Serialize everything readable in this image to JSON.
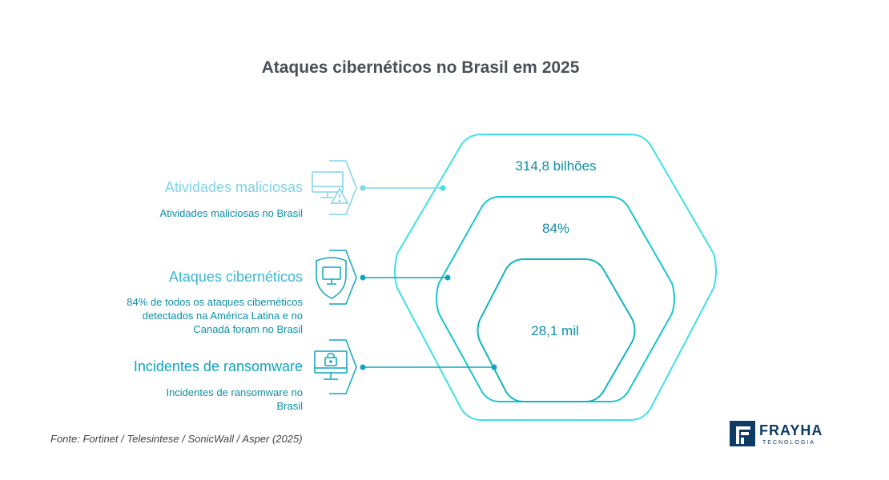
{
  "title": "Ataques cibernéticos no Brasil em 2025",
  "items": [
    {
      "title": "Atividades maliciosas",
      "description": "Atividades maliciosas no Brasil",
      "icon": "monitor-warning-icon",
      "color": "#7fd3ea"
    },
    {
      "title": "Ataques cibernéticos",
      "description": "84% de todos os ataques cibernéticos detectados na América Latina e no Canadá foram no Brasil",
      "icon": "shield-monitor-icon",
      "color": "#3bb8d6"
    },
    {
      "title": "Incidentes de ransomware",
      "description": "Incidentes de ransomware no Brasil",
      "icon": "lock-monitor-icon",
      "color": "#0fa4c0"
    }
  ],
  "hexagons": [
    {
      "value": "314,8 bilhões",
      "color": "#3fe0e6"
    },
    {
      "value": "84%",
      "color": "#17c6cc"
    },
    {
      "value": "28,1 mil",
      "color": "#10b4bd"
    }
  ],
  "source": "Fonte: Fortinet / Telesintese / SonicWall / Asper (2025)",
  "logo": {
    "name": "FRAYHA",
    "subtitle": "TECNOLOGIA",
    "color": "#0d3b66"
  }
}
